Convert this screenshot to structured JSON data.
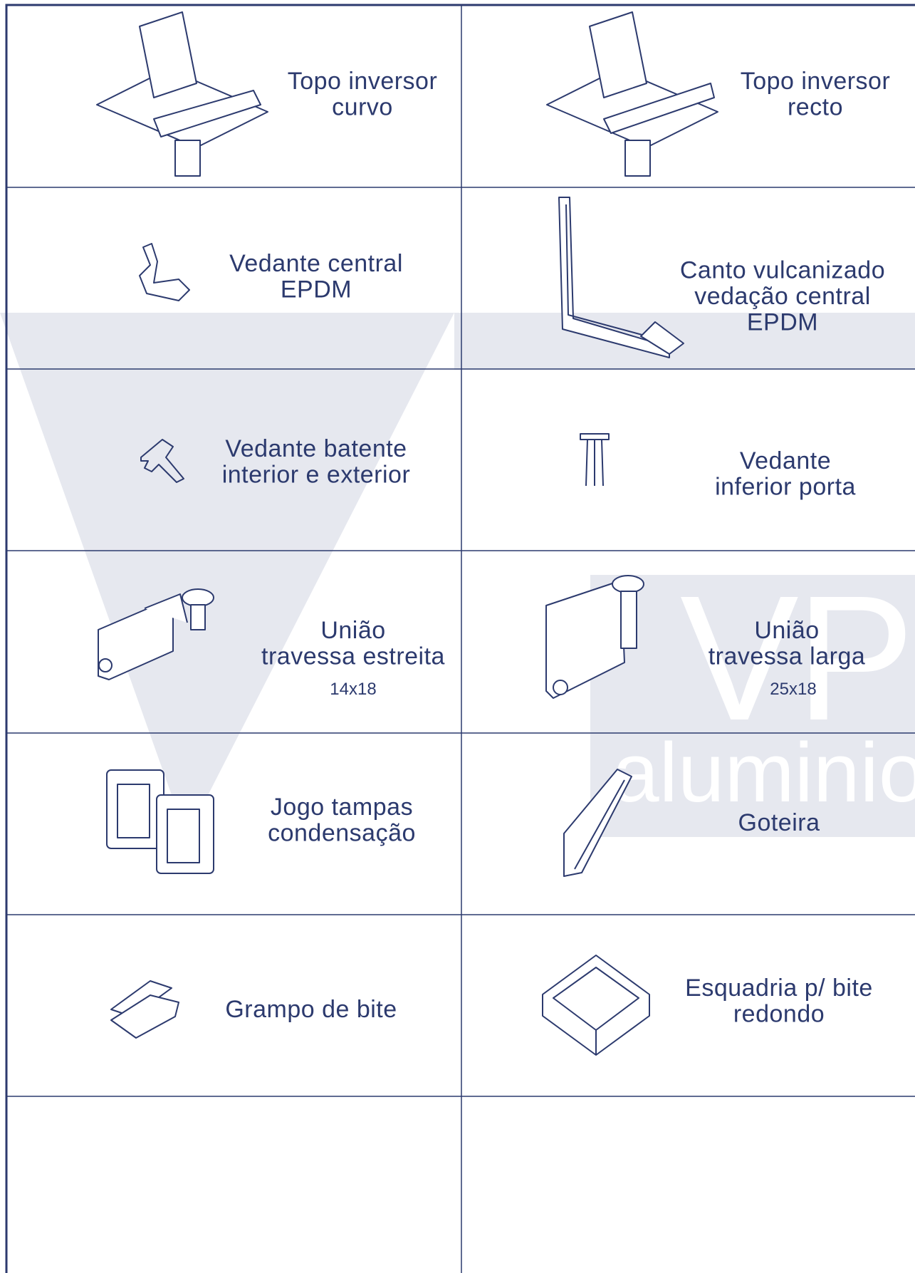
{
  "watermark": {
    "logo": "VP",
    "word": "aluminio"
  },
  "items": [
    {
      "lines": [
        "Topo inversor",
        "curvo"
      ]
    },
    {
      "lines": [
        "Topo inversor",
        "recto"
      ]
    },
    {
      "lines": [
        "Vedante central",
        "EPDM"
      ]
    },
    {
      "lines": [
        "Canto vulcanizado",
        "vedação central",
        "EPDM"
      ]
    },
    {
      "lines": [
        "Vedante batente",
        "interior e exterior"
      ]
    },
    {
      "lines": [
        "Vedante",
        "inferior porta"
      ]
    },
    {
      "lines": [
        "União",
        "travessa estreita"
      ],
      "size": "14x18"
    },
    {
      "lines": [
        "União",
        "travessa larga"
      ],
      "size": "25x18"
    },
    {
      "lines": [
        "Jogo tampas",
        "condensação"
      ]
    },
    {
      "lines": [
        "Goteira"
      ]
    },
    {
      "lines": [
        "Grampo de bite"
      ]
    },
    {
      "lines": [
        "Esquadria p/ bite",
        "redondo"
      ]
    }
  ]
}
